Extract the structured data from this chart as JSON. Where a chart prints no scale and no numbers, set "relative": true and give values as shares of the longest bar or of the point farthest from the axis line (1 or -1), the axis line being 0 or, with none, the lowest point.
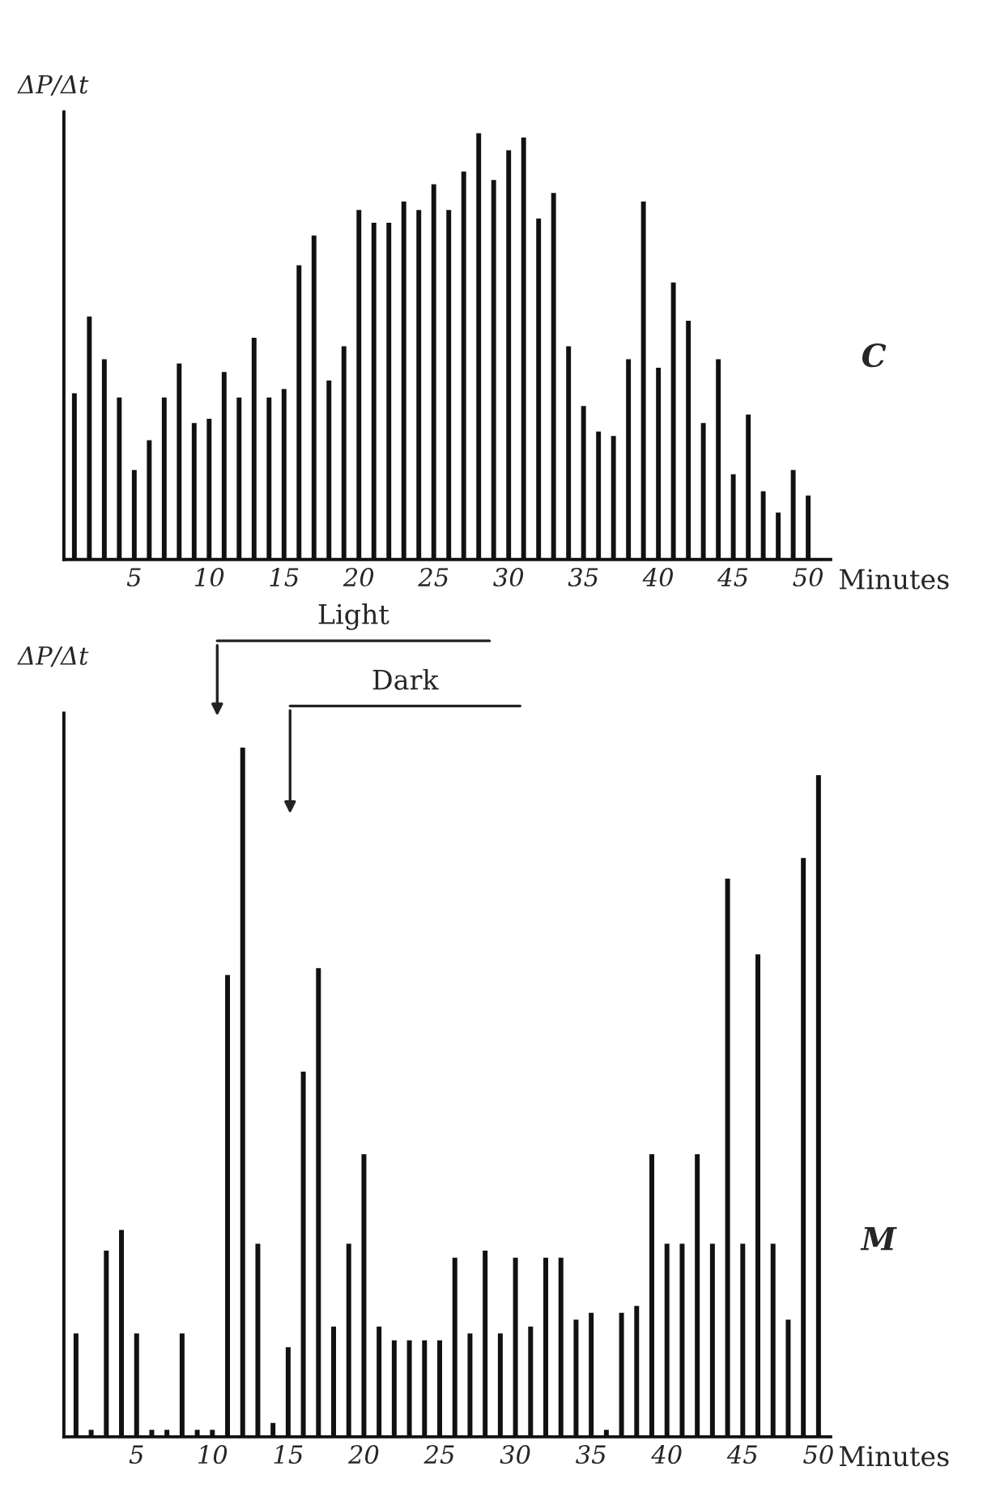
{
  "chart_data": [
    {
      "type": "bar",
      "relative": true,
      "xlabel": "Minutes",
      "ylabel": "ΔP/Δt",
      "tick_labels": "x",
      "color": "#111111",
      "x": [
        1,
        2,
        3,
        4,
        5,
        6,
        7,
        8,
        9,
        10,
        11,
        12,
        13,
        14,
        15,
        16,
        17,
        18,
        19,
        20,
        21,
        22,
        23,
        24,
        25,
        26,
        27,
        28,
        29,
        30,
        31,
        32,
        33,
        34,
        35,
        36,
        37,
        38,
        39,
        40,
        41,
        42,
        43,
        44,
        45,
        46,
        47,
        48,
        49,
        50
      ],
      "values": [
        0.39,
        0.57,
        0.47,
        0.38,
        0.21,
        0.28,
        0.38,
        0.46,
        0.32,
        0.33,
        0.44,
        0.38,
        0.52,
        0.38,
        0.4,
        0.69,
        0.76,
        0.42,
        0.5,
        0.82,
        0.79,
        0.79,
        0.84,
        0.82,
        0.88,
        0.82,
        0.91,
        1.0,
        0.89,
        0.96,
        0.99,
        0.8,
        0.86,
        0.5,
        0.36,
        0.3,
        0.29,
        0.47,
        0.84,
        0.45,
        0.65,
        0.56,
        0.32,
        0.47,
        0.2,
        0.34,
        0.16,
        0.11,
        0.21,
        0.15
      ],
      "xlim": [
        0.3,
        51.5
      ],
      "xticks": [
        5,
        10,
        15,
        20,
        25,
        30,
        35,
        40,
        45,
        50
      ],
      "annotations": [
        "C"
      ]
    },
    {
      "type": "bar",
      "relative": true,
      "xlabel": "Minutes",
      "ylabel": "ΔP/Δt",
      "tick_labels": "x",
      "color": "#111111",
      "x": [
        1,
        2,
        3,
        4,
        5,
        6,
        7,
        8,
        9,
        10,
        11,
        12,
        13,
        14,
        15,
        16,
        17,
        18,
        19,
        20,
        21,
        22,
        23,
        24,
        25,
        26,
        27,
        28,
        29,
        30,
        31,
        32,
        33,
        34,
        35,
        36,
        37,
        38,
        39,
        40,
        41,
        42,
        43,
        44,
        45,
        46,
        47,
        48,
        49,
        50
      ],
      "values": [
        0.15,
        0.01,
        0.27,
        0.3,
        0.15,
        0.01,
        0.01,
        0.15,
        0.01,
        0.01,
        0.67,
        1.0,
        0.28,
        0.02,
        0.13,
        0.53,
        0.68,
        0.16,
        0.28,
        0.41,
        0.16,
        0.14,
        0.14,
        0.14,
        0.14,
        0.26,
        0.15,
        0.27,
        0.15,
        0.26,
        0.16,
        0.26,
        0.26,
        0.17,
        0.18,
        0.01,
        0.18,
        0.19,
        0.41,
        0.28,
        0.28,
        0.41,
        0.28,
        0.81,
        0.28,
        0.7,
        0.28,
        0.17,
        0.84,
        0.96
      ],
      "xlim": [
        0.2,
        50.8
      ],
      "xticks": [
        5,
        10,
        15,
        20,
        25,
        30,
        35,
        40,
        45,
        50
      ],
      "annotations": [
        "Light",
        "Dark",
        "M"
      ]
    }
  ]
}
